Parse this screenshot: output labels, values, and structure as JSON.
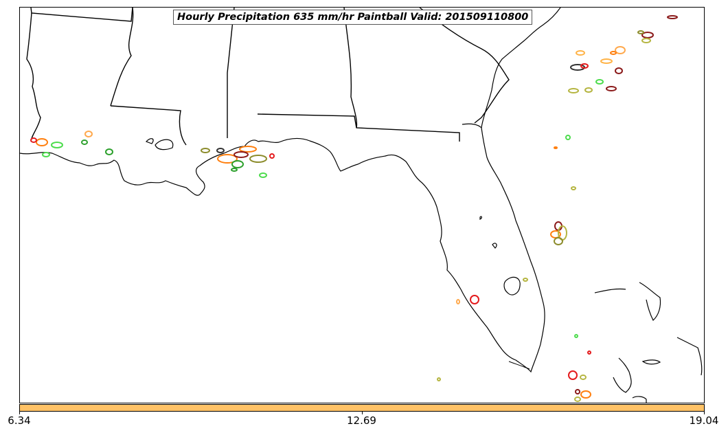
{
  "map": {
    "title": "Hourly Precipitation 635 mm/hr Paintball Valid: 201509110800",
    "region": "Southeast United States / Gulf Coast / Florida",
    "background_color": "#ffffff",
    "line_color": "#000000",
    "paintball_colors": [
      "#e41a1c",
      "#ff7f0e",
      "#ffa94d",
      "#2ca02c",
      "#4ddc4d",
      "#8c8c2c",
      "#b5b540",
      "#8b1a1a",
      "#333333",
      "#ffb347"
    ]
  },
  "colorbar": {
    "color": "#ffc266",
    "ticks": [
      {
        "label": "6.34",
        "frac": 0.0
      },
      {
        "label": "12.69",
        "frac": 0.5
      },
      {
        "label": "19.04",
        "frac": 1.0
      }
    ]
  }
}
